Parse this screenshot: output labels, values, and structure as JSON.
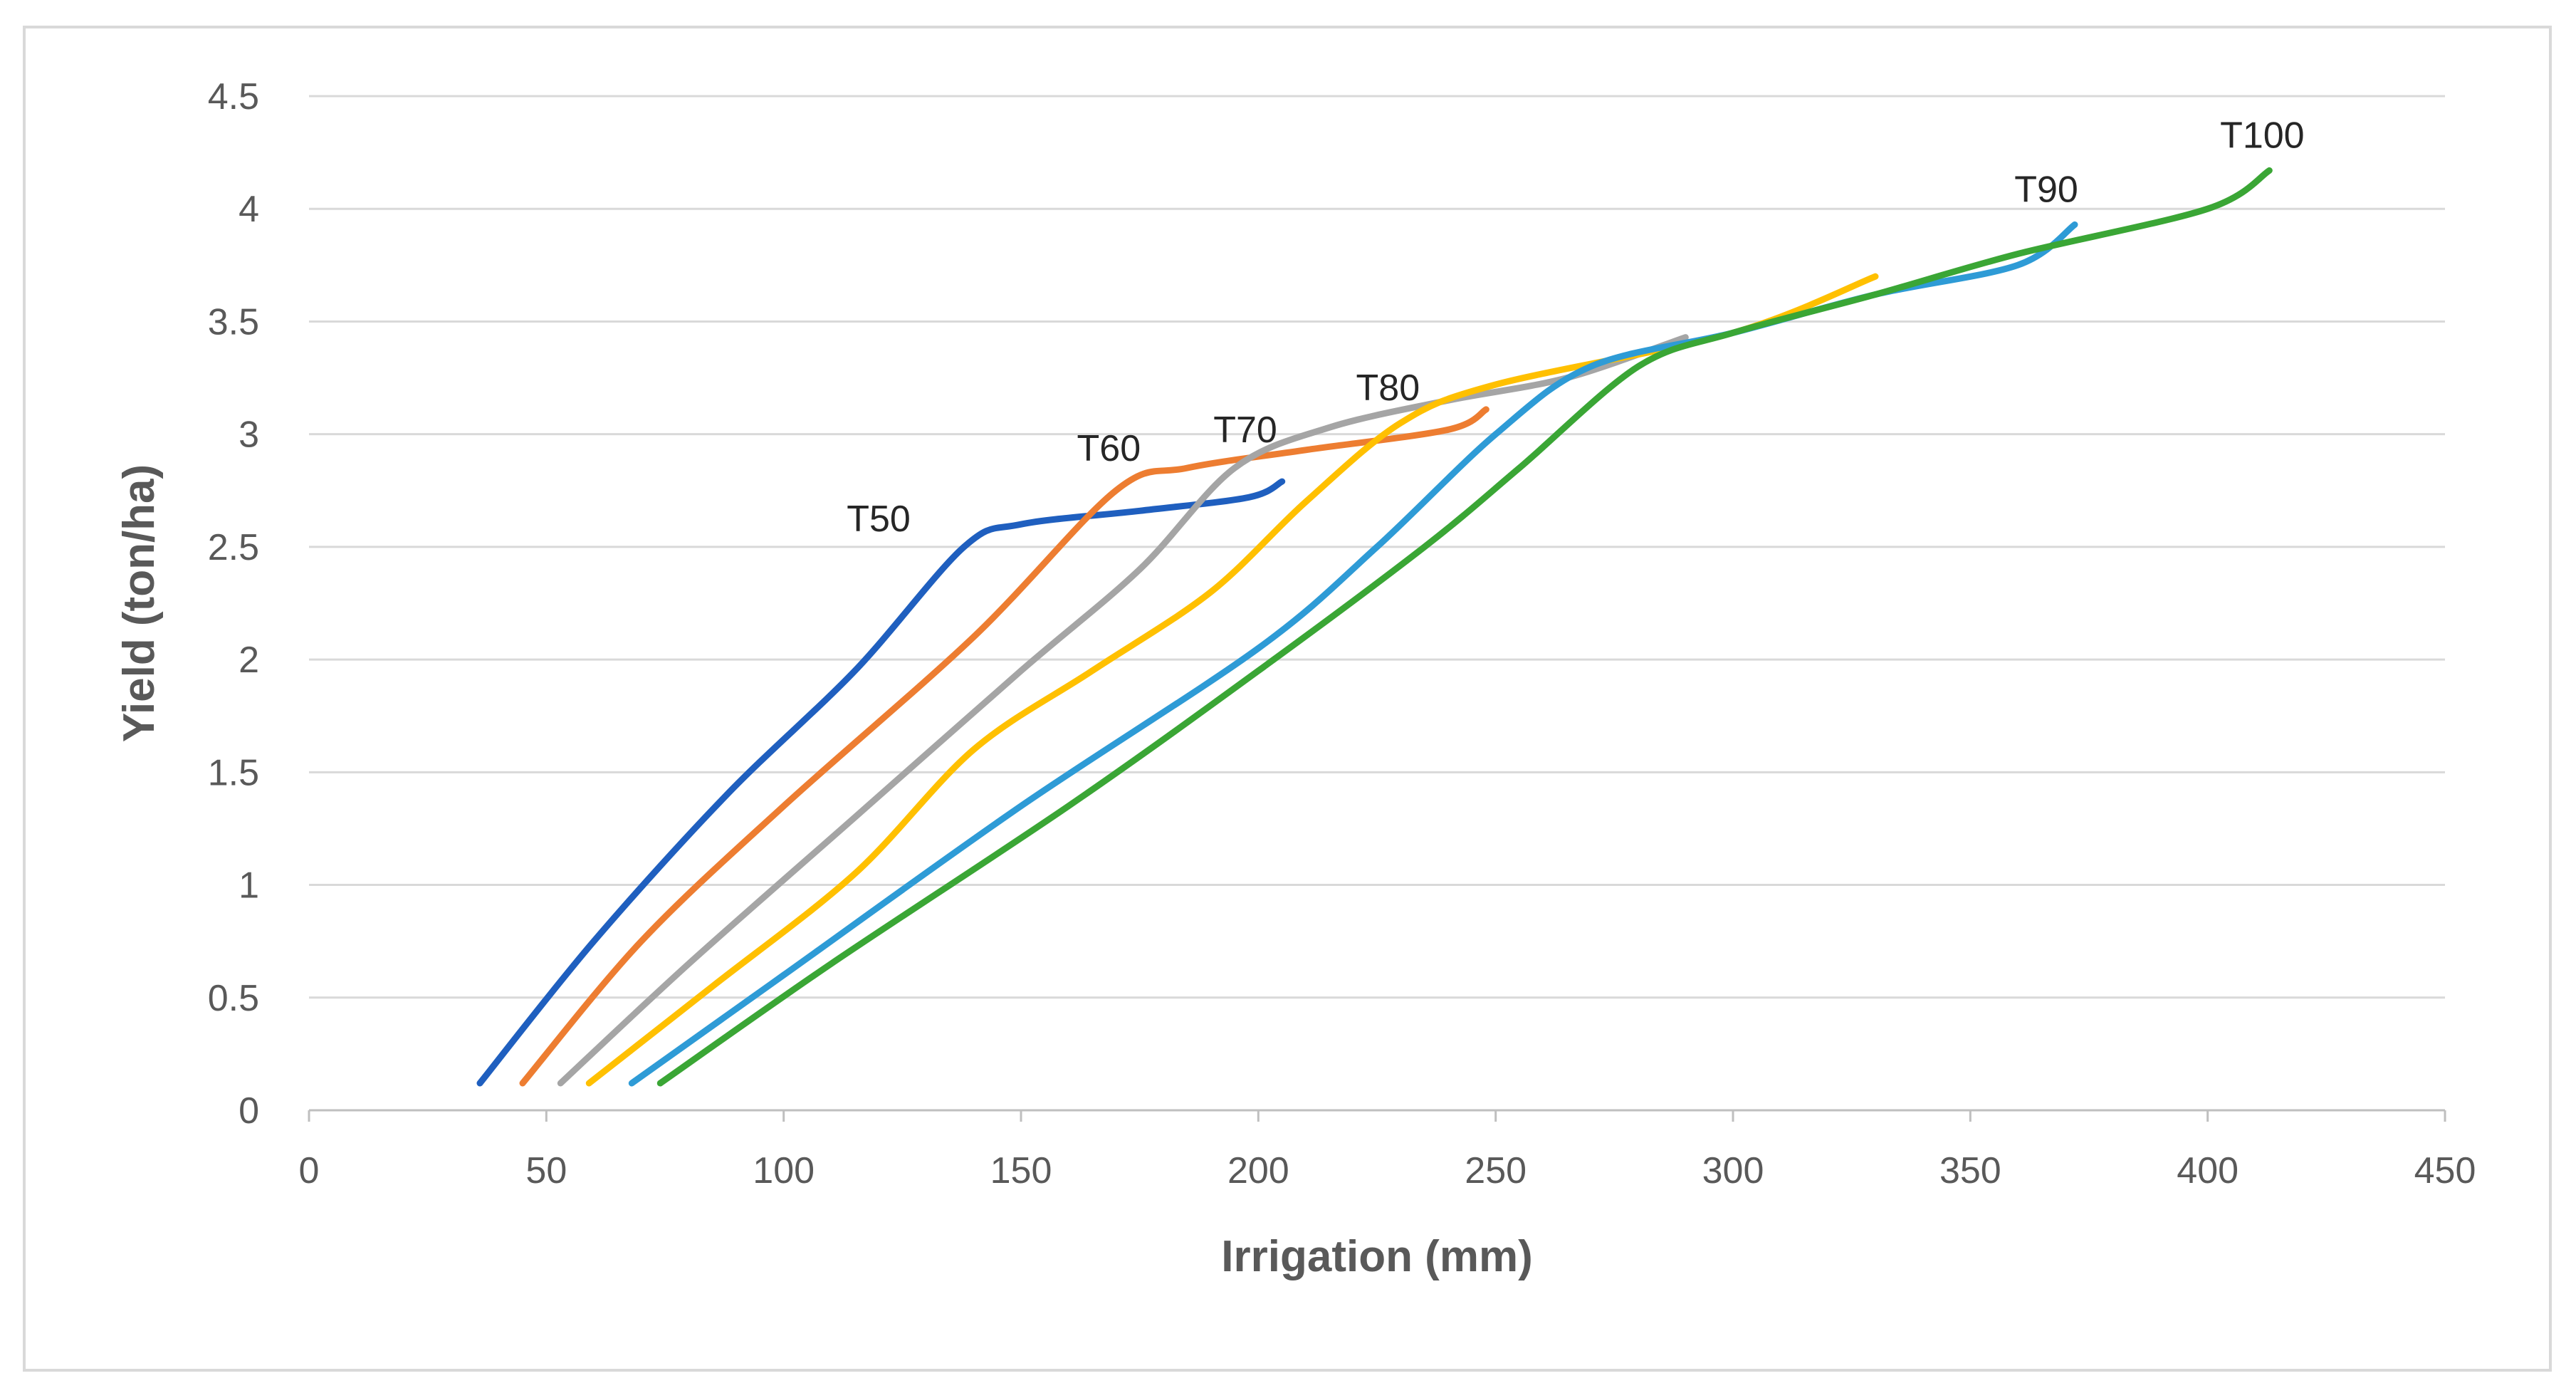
{
  "chart_data": {
    "type": "line",
    "title": "",
    "xlabel": "Irrigation (mm)",
    "ylabel": "Yield (ton/ha)",
    "xlim": [
      0,
      450
    ],
    "ylim": [
      0,
      4.5
    ],
    "x_ticks": [
      0,
      50,
      100,
      150,
      200,
      250,
      300,
      350,
      400,
      450
    ],
    "y_ticks": [
      0,
      0.5,
      1,
      1.5,
      2,
      2.5,
      3,
      3.5,
      4,
      4.5
    ],
    "x_tick_labels": [
      "0",
      "50",
      "100",
      "150",
      "200",
      "250",
      "300",
      "350",
      "400",
      "450"
    ],
    "y_tick_labels": [
      "0",
      "0.5",
      "1",
      "1.5",
      "2",
      "2.5",
      "3",
      "3.5",
      "4",
      "4.5"
    ],
    "grid": "horizontal",
    "legend": "none",
    "series": [
      {
        "name": "T50",
        "color": "#1f5fbf",
        "label": "T50",
        "points": [
          [
            36,
            0.12
          ],
          [
            60,
            0.75
          ],
          [
            88,
            1.4
          ],
          [
            115,
            1.95
          ],
          [
            138,
            2.5
          ],
          [
            150,
            2.6
          ],
          [
            175,
            2.66
          ],
          [
            198,
            2.72
          ],
          [
            205,
            2.79
          ]
        ]
      },
      {
        "name": "T60",
        "color": "#ed7d31",
        "label": "T60",
        "points": [
          [
            45,
            0.12
          ],
          [
            70,
            0.75
          ],
          [
            100,
            1.35
          ],
          [
            140,
            2.1
          ],
          [
            170,
            2.75
          ],
          [
            185,
            2.85
          ],
          [
            210,
            2.93
          ],
          [
            240,
            3.02
          ],
          [
            248,
            3.11
          ]
        ]
      },
      {
        "name": "T70",
        "color": "#a5a5a5",
        "label": "T70",
        "points": [
          [
            53,
            0.12
          ],
          [
            80,
            0.65
          ],
          [
            115,
            1.3
          ],
          [
            150,
            1.95
          ],
          [
            175,
            2.4
          ],
          [
            195,
            2.85
          ],
          [
            215,
            3.03
          ],
          [
            240,
            3.15
          ],
          [
            265,
            3.25
          ],
          [
            290,
            3.43
          ]
        ]
      },
      {
        "name": "T80",
        "color": "#ffc000",
        "label": "T80",
        "points": [
          [
            59,
            0.12
          ],
          [
            85,
            0.55
          ],
          [
            115,
            1.05
          ],
          [
            140,
            1.6
          ],
          [
            165,
            1.95
          ],
          [
            190,
            2.3
          ],
          [
            210,
            2.7
          ],
          [
            230,
            3.05
          ],
          [
            250,
            3.22
          ],
          [
            300,
            3.45
          ],
          [
            330,
            3.7
          ]
        ]
      },
      {
        "name": "T90",
        "color": "#2e9bd6",
        "label": "T90",
        "points": [
          [
            68,
            0.12
          ],
          [
            100,
            0.6
          ],
          [
            150,
            1.35
          ],
          [
            200,
            2.05
          ],
          [
            225,
            2.5
          ],
          [
            250,
            3.0
          ],
          [
            270,
            3.3
          ],
          [
            300,
            3.45
          ],
          [
            330,
            3.62
          ],
          [
            360,
            3.75
          ],
          [
            372,
            3.93
          ]
        ]
      },
      {
        "name": "T100",
        "color": "#3aa635",
        "label": "T100",
        "points": [
          [
            74,
            0.12
          ],
          [
            110,
            0.65
          ],
          [
            160,
            1.35
          ],
          [
            200,
            1.95
          ],
          [
            235,
            2.5
          ],
          [
            255,
            2.85
          ],
          [
            280,
            3.3
          ],
          [
            300,
            3.45
          ],
          [
            330,
            3.62
          ],
          [
            360,
            3.8
          ],
          [
            400,
            4.0
          ],
          [
            413,
            4.17
          ]
        ]
      }
    ]
  }
}
